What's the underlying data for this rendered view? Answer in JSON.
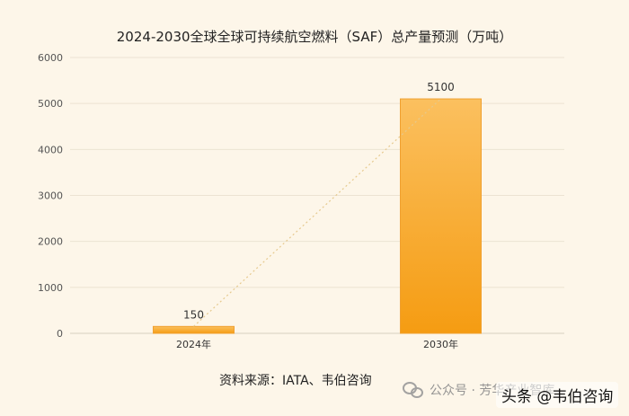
{
  "chart_data": {
    "type": "bar",
    "title": "2024-2030全球全球可持续航空燃料（SAF）总产量预测（万吨）",
    "categories": [
      "2024年",
      "2030年"
    ],
    "values": [
      150,
      5100
    ],
    "data_labels": [
      "150",
      "5100"
    ],
    "ylim": [
      0,
      6000
    ],
    "yticks": [
      0,
      1000,
      2000,
      3000,
      4000,
      5000,
      6000
    ],
    "grid": true,
    "trendline": "dotted",
    "bar_color": "#f7a52b"
  },
  "footer": {
    "source": "资料来源：IATA、韦伯咨询"
  },
  "watermarks": {
    "wechat": "公众号 · 芳华产业智库",
    "toutiao": "头条 @韦伯咨询"
  }
}
